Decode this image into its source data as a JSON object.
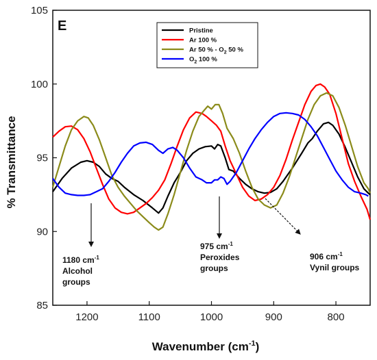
{
  "chart_data": {
    "type": "line",
    "panel_label": "E",
    "xlabel": "Wavenumber (cm",
    "xlabel_sup": "-1",
    "xlabel_tail": ")",
    "ylabel": "% Transmittance",
    "xlim": [
      1255,
      745
    ],
    "ylim": [
      85,
      105
    ],
    "xticks": [
      1200,
      1100,
      1000,
      900,
      800
    ],
    "yticks": [
      85,
      90,
      95,
      100,
      105
    ],
    "x_reversed": true,
    "legend_position": "top-center",
    "series": [
      {
        "name": "Pristine",
        "color": "#000000",
        "points": [
          [
            1255,
            92.7
          ],
          [
            1240,
            93.6
          ],
          [
            1225,
            94.3
          ],
          [
            1210,
            94.7
          ],
          [
            1200,
            94.8
          ],
          [
            1190,
            94.7
          ],
          [
            1180,
            94.4
          ],
          [
            1170,
            93.9
          ],
          [
            1160,
            93.6
          ],
          [
            1150,
            93.4
          ],
          [
            1140,
            93.0
          ],
          [
            1125,
            92.5
          ],
          [
            1110,
            92.1
          ],
          [
            1095,
            91.6
          ],
          [
            1085,
            91.25
          ],
          [
            1078,
            91.6
          ],
          [
            1070,
            92.4
          ],
          [
            1060,
            93.3
          ],
          [
            1050,
            94.0
          ],
          [
            1040,
            94.8
          ],
          [
            1030,
            95.3
          ],
          [
            1020,
            95.6
          ],
          [
            1010,
            95.75
          ],
          [
            1000,
            95.8
          ],
          [
            995,
            95.6
          ],
          [
            990,
            95.9
          ],
          [
            985,
            95.8
          ],
          [
            978,
            95.0
          ],
          [
            972,
            94.2
          ],
          [
            965,
            94.1
          ],
          [
            955,
            93.6
          ],
          [
            945,
            93.2
          ],
          [
            935,
            92.9
          ],
          [
            925,
            92.7
          ],
          [
            915,
            92.6
          ],
          [
            905,
            92.65
          ],
          [
            895,
            92.9
          ],
          [
            885,
            93.4
          ],
          [
            870,
            94.3
          ],
          [
            855,
            95.3
          ],
          [
            845,
            96.0
          ],
          [
            838,
            96.3
          ],
          [
            830,
            96.8
          ],
          [
            820,
            97.3
          ],
          [
            812,
            97.4
          ],
          [
            805,
            97.2
          ],
          [
            795,
            96.6
          ],
          [
            785,
            95.7
          ],
          [
            775,
            94.7
          ],
          [
            765,
            93.7
          ],
          [
            755,
            92.9
          ],
          [
            748,
            92.6
          ],
          [
            745,
            92.5
          ]
        ]
      },
      {
        "name": "Ar 100 %",
        "color": "#ff0000",
        "points": [
          [
            1255,
            96.4
          ],
          [
            1245,
            96.8
          ],
          [
            1235,
            97.1
          ],
          [
            1225,
            97.15
          ],
          [
            1215,
            96.9
          ],
          [
            1205,
            96.3
          ],
          [
            1195,
            95.4
          ],
          [
            1185,
            94.3
          ],
          [
            1175,
            93.2
          ],
          [
            1165,
            92.2
          ],
          [
            1155,
            91.6
          ],
          [
            1145,
            91.3
          ],
          [
            1135,
            91.2
          ],
          [
            1125,
            91.3
          ],
          [
            1115,
            91.6
          ],
          [
            1105,
            91.9
          ],
          [
            1095,
            92.3
          ],
          [
            1085,
            92.8
          ],
          [
            1075,
            93.5
          ],
          [
            1065,
            94.6
          ],
          [
            1055,
            95.8
          ],
          [
            1045,
            96.9
          ],
          [
            1035,
            97.7
          ],
          [
            1025,
            98.1
          ],
          [
            1015,
            98.0
          ],
          [
            1008,
            97.8
          ],
          [
            1000,
            97.5
          ],
          [
            992,
            97.2
          ],
          [
            985,
            96.8
          ],
          [
            978,
            95.8
          ],
          [
            970,
            94.8
          ],
          [
            960,
            93.9
          ],
          [
            950,
            93.0
          ],
          [
            940,
            92.4
          ],
          [
            930,
            92.1
          ],
          [
            920,
            92.2
          ],
          [
            910,
            92.5
          ],
          [
            900,
            93.0
          ],
          [
            890,
            93.8
          ],
          [
            880,
            94.9
          ],
          [
            870,
            96.2
          ],
          [
            860,
            97.4
          ],
          [
            850,
            98.6
          ],
          [
            840,
            99.5
          ],
          [
            832,
            99.9
          ],
          [
            825,
            100.0
          ],
          [
            818,
            99.8
          ],
          [
            810,
            99.3
          ],
          [
            800,
            98.0
          ],
          [
            790,
            96.3
          ],
          [
            780,
            94.6
          ],
          [
            770,
            93.4
          ],
          [
            760,
            92.4
          ],
          [
            750,
            91.5
          ],
          [
            745,
            90.8
          ]
        ]
      },
      {
        "name": "Ar 50 % - O",
        "name_sub1": "2",
        "name_mid": " 50 %",
        "color": "#8b8b1a",
        "points": [
          [
            1255,
            93.0
          ],
          [
            1245,
            94.4
          ],
          [
            1235,
            95.8
          ],
          [
            1225,
            96.9
          ],
          [
            1215,
            97.5
          ],
          [
            1205,
            97.8
          ],
          [
            1198,
            97.7
          ],
          [
            1190,
            97.2
          ],
          [
            1180,
            96.2
          ],
          [
            1170,
            95.0
          ],
          [
            1160,
            93.8
          ],
          [
            1150,
            93.0
          ],
          [
            1140,
            92.4
          ],
          [
            1130,
            91.9
          ],
          [
            1120,
            91.4
          ],
          [
            1110,
            91.0
          ],
          [
            1100,
            90.6
          ],
          [
            1092,
            90.3
          ],
          [
            1085,
            90.1
          ],
          [
            1078,
            90.3
          ],
          [
            1070,
            91.2
          ],
          [
            1060,
            92.5
          ],
          [
            1050,
            94.0
          ],
          [
            1040,
            95.5
          ],
          [
            1030,
            96.8
          ],
          [
            1020,
            97.8
          ],
          [
            1012,
            98.2
          ],
          [
            1006,
            98.5
          ],
          [
            1000,
            98.3
          ],
          [
            994,
            98.6
          ],
          [
            988,
            98.6
          ],
          [
            982,
            98.0
          ],
          [
            975,
            97.0
          ],
          [
            965,
            96.3
          ],
          [
            955,
            95.3
          ],
          [
            945,
            94.1
          ],
          [
            935,
            93.0
          ],
          [
            925,
            92.2
          ],
          [
            915,
            91.8
          ],
          [
            905,
            91.6
          ],
          [
            895,
            91.8
          ],
          [
            885,
            92.6
          ],
          [
            875,
            93.7
          ],
          [
            865,
            95.0
          ],
          [
            855,
            96.3
          ],
          [
            845,
            97.6
          ],
          [
            835,
            98.6
          ],
          [
            825,
            99.2
          ],
          [
            815,
            99.4
          ],
          [
            805,
            99.2
          ],
          [
            795,
            98.4
          ],
          [
            785,
            97.2
          ],
          [
            775,
            95.8
          ],
          [
            765,
            94.4
          ],
          [
            755,
            93.3
          ],
          [
            748,
            92.9
          ],
          [
            745,
            92.6
          ]
        ]
      },
      {
        "name": "O",
        "name_sub1": "2",
        "name_mid": " 100 %",
        "color": "#0000ff",
        "points": [
          [
            1255,
            93.6
          ],
          [
            1245,
            93.0
          ],
          [
            1235,
            92.6
          ],
          [
            1225,
            92.5
          ],
          [
            1215,
            92.45
          ],
          [
            1205,
            92.45
          ],
          [
            1195,
            92.5
          ],
          [
            1185,
            92.7
          ],
          [
            1175,
            92.9
          ],
          [
            1165,
            93.4
          ],
          [
            1155,
            94.0
          ],
          [
            1145,
            94.7
          ],
          [
            1135,
            95.3
          ],
          [
            1125,
            95.8
          ],
          [
            1115,
            96.0
          ],
          [
            1105,
            96.05
          ],
          [
            1095,
            95.9
          ],
          [
            1085,
            95.5
          ],
          [
            1078,
            95.3
          ],
          [
            1070,
            95.6
          ],
          [
            1062,
            95.7
          ],
          [
            1055,
            95.5
          ],
          [
            1045,
            95.0
          ],
          [
            1035,
            94.3
          ],
          [
            1025,
            93.7
          ],
          [
            1015,
            93.5
          ],
          [
            1008,
            93.3
          ],
          [
            1000,
            93.3
          ],
          [
            995,
            93.5
          ],
          [
            990,
            93.5
          ],
          [
            985,
            93.7
          ],
          [
            980,
            93.6
          ],
          [
            975,
            93.2
          ],
          [
            970,
            93.4
          ],
          [
            960,
            94.0
          ],
          [
            950,
            94.8
          ],
          [
            940,
            95.6
          ],
          [
            930,
            96.3
          ],
          [
            920,
            96.9
          ],
          [
            910,
            97.4
          ],
          [
            900,
            97.8
          ],
          [
            890,
            98.0
          ],
          [
            880,
            98.05
          ],
          [
            870,
            98.0
          ],
          [
            860,
            97.9
          ],
          [
            850,
            97.6
          ],
          [
            840,
            97.1
          ],
          [
            830,
            96.5
          ],
          [
            820,
            95.7
          ],
          [
            810,
            94.9
          ],
          [
            800,
            94.1
          ],
          [
            790,
            93.5
          ],
          [
            780,
            93.0
          ],
          [
            770,
            92.7
          ],
          [
            760,
            92.6
          ],
          [
            752,
            92.5
          ],
          [
            748,
            92.4
          ]
        ]
      }
    ],
    "annotations": [
      {
        "wn": "1180 cm",
        "sup": "-1",
        "line2": "Alcohol",
        "line3": "groups"
      },
      {
        "wn": "975 cm",
        "sup": "-1",
        "line2": "Peroxides",
        "line3": "groups"
      },
      {
        "wn": "906 cm",
        "sup": "-1",
        "line2": "Vynil groups",
        "line3": ""
      }
    ]
  }
}
